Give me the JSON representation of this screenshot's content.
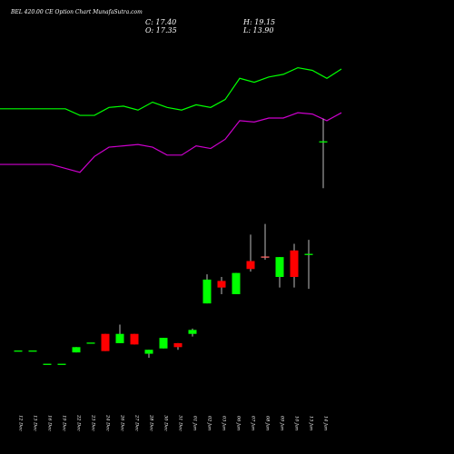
{
  "header": {
    "title": "BEL 420.00 CE Option Chart MunafaSutra.com",
    "close": "C: 17.40",
    "open": "O: 17.35",
    "high": "H: 19.15",
    "low": "L: 13.90"
  },
  "chart_data": {
    "type": "candlestick",
    "title": "BEL 420.00 CE Option Chart MunafaSutra.com",
    "ylim": [
      0,
      24
    ],
    "categories": [
      "12 Dec",
      "13 Dec",
      "16 Dec",
      "19 Dec",
      "22 Dec",
      "23 Dec",
      "24 Dec",
      "26 Dec",
      "27 Dec",
      "28 Dec",
      "30 Dec",
      "31 Dec",
      "01 Jan",
      "02 Jan",
      "03 Jan",
      "06 Jan",
      "07 Jan",
      "08 Jan",
      "09 Jan",
      "10 Jan",
      "13 Jan",
      "14 Jan"
    ],
    "candles": [
      {
        "o": 1.6,
        "h": 1.6,
        "l": 1.6,
        "c": 1.6
      },
      {
        "o": 1.6,
        "h": 1.6,
        "l": 1.6,
        "c": 1.6
      },
      {
        "o": 0.6,
        "h": 0.6,
        "l": 0.6,
        "c": 0.6
      },
      {
        "o": 0.6,
        "h": 0.6,
        "l": 0.6,
        "c": 0.6
      },
      {
        "o": 1.5,
        "h": 1.9,
        "l": 1.5,
        "c": 1.9
      },
      {
        "o": 2.2,
        "h": 2.2,
        "l": 2.2,
        "c": 2.2
      },
      {
        "o": 2.9,
        "h": 2.9,
        "l": 1.6,
        "c": 1.6
      },
      {
        "o": 2.2,
        "h": 3.6,
        "l": 2.2,
        "c": 2.9
      },
      {
        "o": 2.9,
        "h": 2.9,
        "l": 2.1,
        "c": 2.1
      },
      {
        "o": 1.4,
        "h": 1.7,
        "l": 1.1,
        "c": 1.7
      },
      {
        "o": 1.8,
        "h": 2.6,
        "l": 1.8,
        "c": 2.6
      },
      {
        "o": 2.2,
        "h": 2.2,
        "l": 1.7,
        "c": 1.9
      },
      {
        "o": 2.9,
        "h": 3.3,
        "l": 2.7,
        "c": 3.2
      },
      {
        "o": 5.2,
        "h": 7.4,
        "l": 5.2,
        "c": 7.0
      },
      {
        "o": 6.9,
        "h": 7.2,
        "l": 5.9,
        "c": 6.4
      },
      {
        "o": 5.9,
        "h": 7.5,
        "l": 5.9,
        "c": 7.5
      },
      {
        "o": 8.4,
        "h": 10.4,
        "l": 7.6,
        "c": 7.8
      },
      {
        "o": 8.7,
        "h": 11.2,
        "l": 8.5,
        "c": 8.7
      },
      {
        "o": 7.2,
        "h": 8.7,
        "l": 6.4,
        "c": 8.7
      },
      {
        "o": 9.2,
        "h": 9.7,
        "l": 6.4,
        "c": 7.2
      },
      {
        "o": 8.9,
        "h": 10.0,
        "l": 6.3,
        "c": 8.9
      },
      {
        "o": 17.35,
        "h": 19.15,
        "l": 13.9,
        "c": 17.4
      }
    ],
    "bands": [
      {
        "color": "#00ff00",
        "values": [
          19.9,
          19.9,
          19.9,
          19.4,
          19.4,
          20.0,
          20.1,
          19.8,
          20.4,
          20.0,
          19.8,
          20.2,
          20.0,
          20.6,
          22.2,
          21.9,
          22.3,
          22.5,
          23.0,
          22.8,
          22.2,
          22.9
        ]
      },
      {
        "color": "#cc00cc",
        "values": [
          15.7,
          15.7,
          15.4,
          15.1,
          16.3,
          17.0,
          17.1,
          17.2,
          17.0,
          16.4,
          16.4,
          17.1,
          16.9,
          17.6,
          19.0,
          18.9,
          19.2,
          19.2,
          19.6,
          19.5,
          19.0,
          19.6
        ]
      }
    ]
  },
  "colors": {
    "up": "#00ff00",
    "down": "#ff0000",
    "doji": "#00ff00",
    "background": "#000000"
  }
}
